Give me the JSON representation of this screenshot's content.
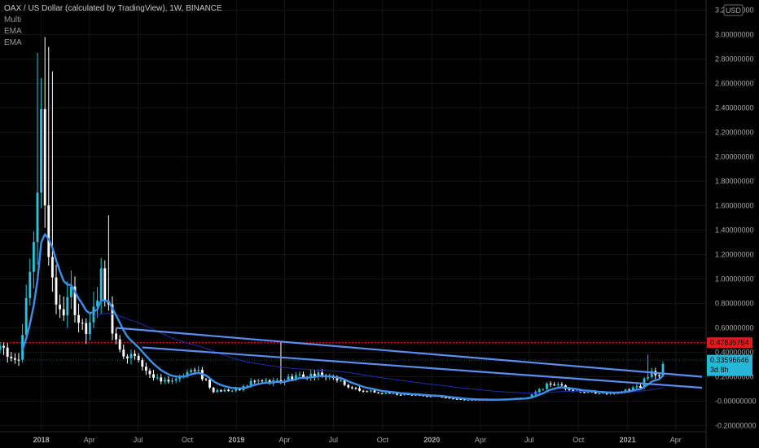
{
  "legend": {
    "title": "OAX / US Dollar (calculated by TradingView), 1W, BINANCE",
    "indicators": [
      "Multi",
      "EMA",
      "EMA"
    ]
  },
  "currency_badge": "USD",
  "price_flags": [
    {
      "name": "resistance-price-flag",
      "label": "0.47839754",
      "value": 0.47839754,
      "color": "#e21a1a"
    },
    {
      "name": "current-price-flag",
      "label": "0.33596646",
      "sublabel": "3d 8h",
      "value": 0.33596646,
      "color": "#26b6d6"
    }
  ],
  "colors": {
    "candle_up": "#26c6da",
    "candle_down": "#ffffff",
    "ema_fast": "#3d8fe8",
    "ema_slow": "#1c2ea8",
    "trendline": "#5b8def",
    "resistance": "#e21a1a",
    "grid": "#141414"
  },
  "chart_data": {
    "type": "candlestick",
    "ylim": [
      -0.25,
      3.25
    ],
    "y_ticks": [
      -0.2,
      0,
      0.2,
      0.4,
      0.6,
      0.8,
      1.0,
      1.2,
      1.4,
      1.6,
      1.8,
      2.0,
      2.2,
      2.4,
      2.6,
      2.8,
      3.0,
      3.2
    ],
    "y_tick_labels": [
      "-0.20000000",
      "-0.00000000",
      "0.20000000",
      "0.40000000",
      "0.60000000",
      "0.80000000",
      "1.00000000",
      "1.20000000",
      "1.40000000",
      "1.60000000",
      "1.80000000",
      "2.00000000",
      "2.20000000",
      "2.40000000",
      "2.60000000",
      "2.80000000",
      "3.00000000",
      "3.20000000"
    ],
    "x_ticks": [
      {
        "label": "2018",
        "date": "2018-01-01",
        "bold": true
      },
      {
        "label": "Apr",
        "date": "2018-04-01"
      },
      {
        "label": "Jul",
        "date": "2018-07-01"
      },
      {
        "label": "Oct",
        "date": "2018-10-01"
      },
      {
        "label": "2019",
        "date": "2019-01-01",
        "bold": true
      },
      {
        "label": "Apr",
        "date": "2019-04-01"
      },
      {
        "label": "Jul",
        "date": "2019-07-01"
      },
      {
        "label": "Oct",
        "date": "2019-10-01"
      },
      {
        "label": "2020",
        "date": "2020-01-01",
        "bold": true
      },
      {
        "label": "Apr",
        "date": "2020-04-01"
      },
      {
        "label": "Jul",
        "date": "2020-07-01"
      },
      {
        "label": "Oct",
        "date": "2020-10-01"
      },
      {
        "label": "2021",
        "date": "2021-01-01",
        "bold": true
      },
      {
        "label": "Apr",
        "date": "2021-04-01"
      }
    ],
    "x_range": [
      "2017-10-16",
      "2021-05-20"
    ],
    "close_keys": [
      {
        "date": "2017-10-16",
        "value": 0.42
      },
      {
        "date": "2017-11-20",
        "value": 0.36
      },
      {
        "date": "2017-12-11",
        "value": 1.0
      },
      {
        "date": "2018-01-01",
        "value": 2.25
      },
      {
        "date": "2018-01-15",
        "value": 1.25
      },
      {
        "date": "2018-02-05",
        "value": 0.7
      },
      {
        "date": "2018-02-26",
        "value": 0.85
      },
      {
        "date": "2018-03-19",
        "value": 0.6
      },
      {
        "date": "2018-04-02",
        "value": 0.6
      },
      {
        "date": "2018-04-23",
        "value": 1.0
      },
      {
        "date": "2018-05-14",
        "value": 0.6
      },
      {
        "date": "2018-06-04",
        "value": 0.4
      },
      {
        "date": "2018-07-09",
        "value": 0.3
      },
      {
        "date": "2018-08-13",
        "value": 0.15
      },
      {
        "date": "2018-09-24",
        "value": 0.22
      },
      {
        "date": "2018-10-22",
        "value": 0.24
      },
      {
        "date": "2018-11-19",
        "value": 0.08
      },
      {
        "date": "2019-01-07",
        "value": 0.1
      },
      {
        "date": "2019-01-28",
        "value": 0.15
      },
      {
        "date": "2019-03-18",
        "value": 0.16
      },
      {
        "date": "2019-04-22",
        "value": 0.2
      },
      {
        "date": "2019-06-24",
        "value": 0.22
      },
      {
        "date": "2019-08-05",
        "value": 0.1
      },
      {
        "date": "2019-10-14",
        "value": 0.06
      },
      {
        "date": "2020-01-06",
        "value": 0.04
      },
      {
        "date": "2020-03-16",
        "value": 0.0
      },
      {
        "date": "2020-06-29",
        "value": 0.03
      },
      {
        "date": "2020-08-10",
        "value": 0.15
      },
      {
        "date": "2020-09-28",
        "value": 0.08
      },
      {
        "date": "2020-12-07",
        "value": 0.06
      },
      {
        "date": "2021-01-25",
        "value": 0.12
      },
      {
        "date": "2021-02-15",
        "value": 0.27
      },
      {
        "date": "2021-03-01",
        "value": 0.19
      },
      {
        "date": "2021-03-08",
        "value": 0.34
      }
    ],
    "wick_keys": [
      {
        "date": "2017-12-25",
        "high": 2.85
      },
      {
        "date": "2018-01-08",
        "high": 2.98
      },
      {
        "date": "2018-01-15",
        "high": 2.9
      },
      {
        "date": "2018-01-22",
        "high": 2.7
      },
      {
        "date": "2018-05-07",
        "high": 1.52
      },
      {
        "date": "2018-04-30",
        "high": 1.05
      },
      {
        "date": "2019-03-25",
        "high": 0.48
      },
      {
        "date": "2021-02-08",
        "high": 0.38
      }
    ],
    "resistance_level": 0.47839754,
    "current_price_level": 0.33596646,
    "trendlines": [
      {
        "name": "upper-trendline",
        "from": {
          "date": "2018-05-21",
          "value": 0.6
        },
        "to": {
          "date": "2021-05-20",
          "value": 0.2
        }
      },
      {
        "name": "lower-trendline",
        "from": {
          "date": "2018-07-09",
          "value": 0.44
        },
        "to": {
          "date": "2021-05-20",
          "value": 0.11
        }
      }
    ]
  }
}
